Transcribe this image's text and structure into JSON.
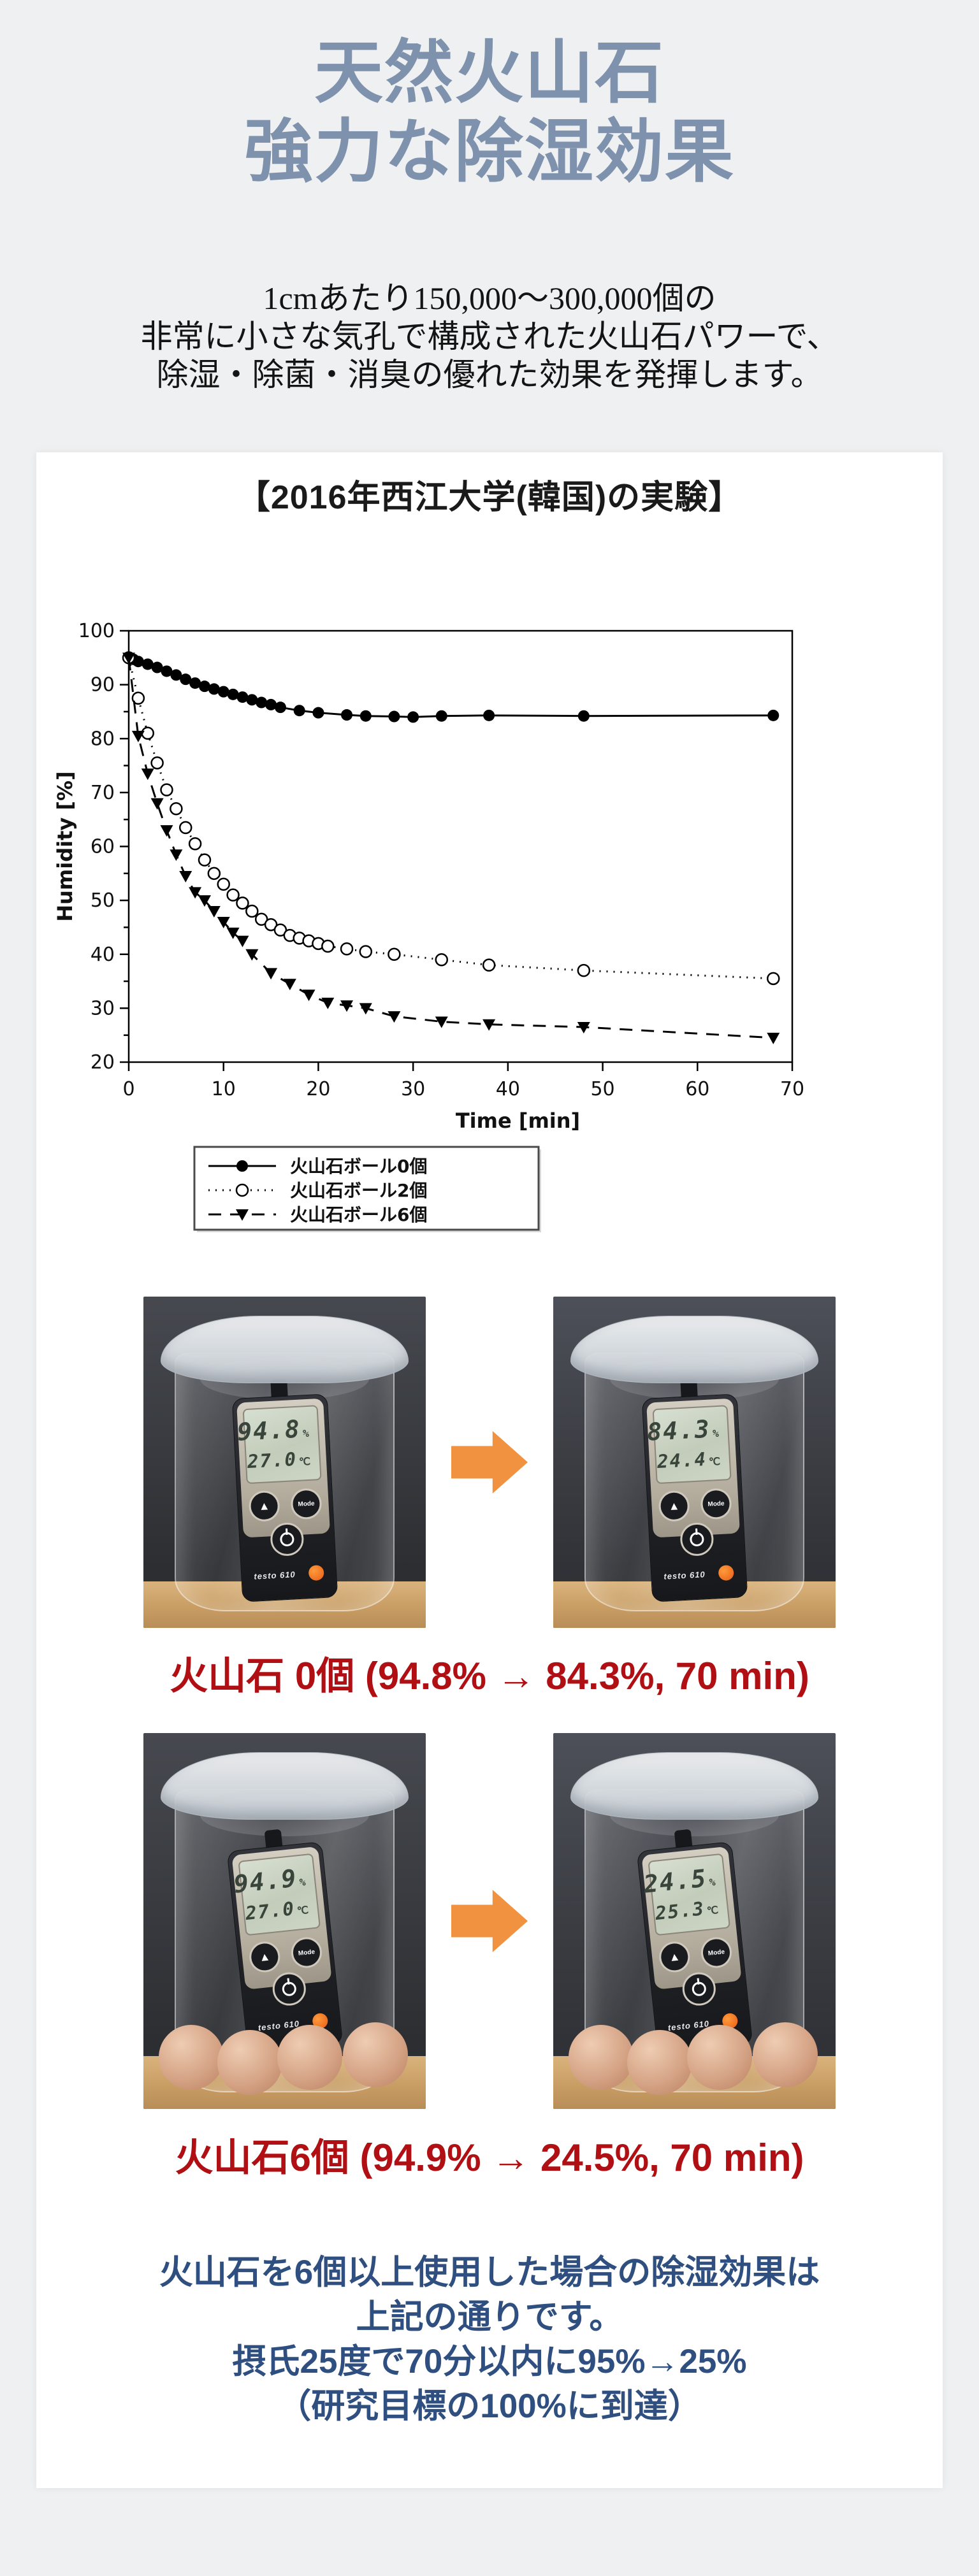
{
  "header": {
    "lines": [
      "天然火山石",
      "強力な除湿効果"
    ],
    "color": "#7e92ad"
  },
  "intro": {
    "lines": [
      "1cmあたり150,000～300,000個の",
      "非常に小さな気孔で構成された火山石パワーで、",
      "除湿・除菌・消臭の優れた効果を発揮します。"
    ]
  },
  "experiment_card": {
    "title": "【2016年西江大学(韓国)の実験】"
  },
  "chart_data": {
    "type": "line",
    "title": "",
    "xlabel": "Time [min]",
    "ylabel": "Humidity [%]",
    "xlim": [
      0,
      70
    ],
    "ylim": [
      20,
      100
    ],
    "xticks": [
      0,
      10,
      20,
      30,
      40,
      50,
      60,
      70
    ],
    "yticks": [
      20,
      30,
      40,
      50,
      60,
      70,
      80,
      90,
      100
    ],
    "grid": false,
    "legend_position": "below-left-box",
    "series": [
      {
        "name": "火山石ボール0個",
        "marker": "filled-circle",
        "line": "solid",
        "points": [
          [
            0,
            95
          ],
          [
            0.5,
            94.7
          ],
          [
            1,
            94.3
          ],
          [
            2,
            93.8
          ],
          [
            3,
            93.2
          ],
          [
            4,
            92.5
          ],
          [
            5,
            91.8
          ],
          [
            6,
            91
          ],
          [
            7,
            90.3
          ],
          [
            8,
            89.7
          ],
          [
            9,
            89.2
          ],
          [
            10,
            88.7
          ],
          [
            11,
            88.2
          ],
          [
            12,
            87.7
          ],
          [
            13,
            87.2
          ],
          [
            14,
            86.7
          ],
          [
            15,
            86.3
          ],
          [
            16,
            85.8
          ],
          [
            18,
            85.2
          ],
          [
            20,
            84.8
          ],
          [
            23,
            84.4
          ],
          [
            25,
            84.2
          ],
          [
            28,
            84.1
          ],
          [
            30,
            84.0
          ],
          [
            33,
            84.2
          ],
          [
            38,
            84.3
          ],
          [
            48,
            84.2
          ],
          [
            68,
            84.3
          ]
        ]
      },
      {
        "name": "火山石ボール2個",
        "marker": "open-circle",
        "line": "dotted",
        "points": [
          [
            0,
            95
          ],
          [
            1,
            87.5
          ],
          [
            2,
            81
          ],
          [
            3,
            75.5
          ],
          [
            4,
            70.5
          ],
          [
            5,
            67
          ],
          [
            6,
            63.5
          ],
          [
            7,
            60.5
          ],
          [
            8,
            57.5
          ],
          [
            9,
            55
          ],
          [
            10,
            53
          ],
          [
            11,
            51
          ],
          [
            12,
            49.5
          ],
          [
            13,
            48
          ],
          [
            14,
            46.5
          ],
          [
            15,
            45.5
          ],
          [
            16,
            44.5
          ],
          [
            17,
            43.5
          ],
          [
            18,
            43
          ],
          [
            19,
            42.5
          ],
          [
            20,
            42
          ],
          [
            21,
            41.5
          ],
          [
            23,
            41
          ],
          [
            25,
            40.5
          ],
          [
            28,
            40
          ],
          [
            33,
            39
          ],
          [
            38,
            38
          ],
          [
            48,
            37
          ],
          [
            68,
            35.5
          ]
        ]
      },
      {
        "name": "火山石ボール6個",
        "marker": "filled-triangle-down",
        "line": "dashed",
        "points": [
          [
            0,
            95
          ],
          [
            1,
            80.5
          ],
          [
            2,
            73.5
          ],
          [
            3,
            68
          ],
          [
            4,
            63
          ],
          [
            5,
            58.5
          ],
          [
            6,
            54.5
          ],
          [
            7,
            51.5
          ],
          [
            8,
            50
          ],
          [
            9,
            48
          ],
          [
            10,
            46
          ],
          [
            11,
            44
          ],
          [
            12,
            42.5
          ],
          [
            13,
            40
          ],
          [
            15,
            36.5
          ],
          [
            17,
            34.5
          ],
          [
            19,
            32.5
          ],
          [
            21,
            31
          ],
          [
            23,
            30.5
          ],
          [
            25,
            30
          ],
          [
            28,
            28.5
          ],
          [
            33,
            27.5
          ],
          [
            38,
            27
          ],
          [
            48,
            26.5
          ],
          [
            68,
            24.5
          ]
        ]
      }
    ]
  },
  "photos": {
    "device_label": "testo 610",
    "humidity_unit": "%",
    "temperature_unit": "℃",
    "mode_button_label": "Mode",
    "up_button_glyph": "▲",
    "pair1": {
      "caption": "火山石 0個 (94.8% → 84.3%, 70 min)",
      "before": {
        "humidity": "94.8",
        "temperature": "27.0"
      },
      "after": {
        "humidity": "84.3",
        "temperature": "24.4"
      },
      "balls_visible": 0
    },
    "pair2": {
      "caption": "火山石6個 (94.9% → 24.5%, 70 min)",
      "before": {
        "humidity": "94.9",
        "temperature": "27.0"
      },
      "after": {
        "humidity": "24.5",
        "temperature": "25.3"
      },
      "balls_visible": 4
    }
  },
  "conclusion": {
    "lines": [
      "火山石を6個以上使用した場合の除湿効果は",
      "上記の通りです。",
      "摂氏25度で70分以内に95%→25%",
      "（研究目標の100%に到達）"
    ],
    "color": "#2f4f80"
  },
  "colors": {
    "background": "#eff0f1",
    "card": "#ffffff",
    "title_blue": "#7e92ad",
    "caption_red": "#b01014",
    "conclusion_blue": "#2f4f80",
    "arrow_orange": "#f0923f"
  }
}
